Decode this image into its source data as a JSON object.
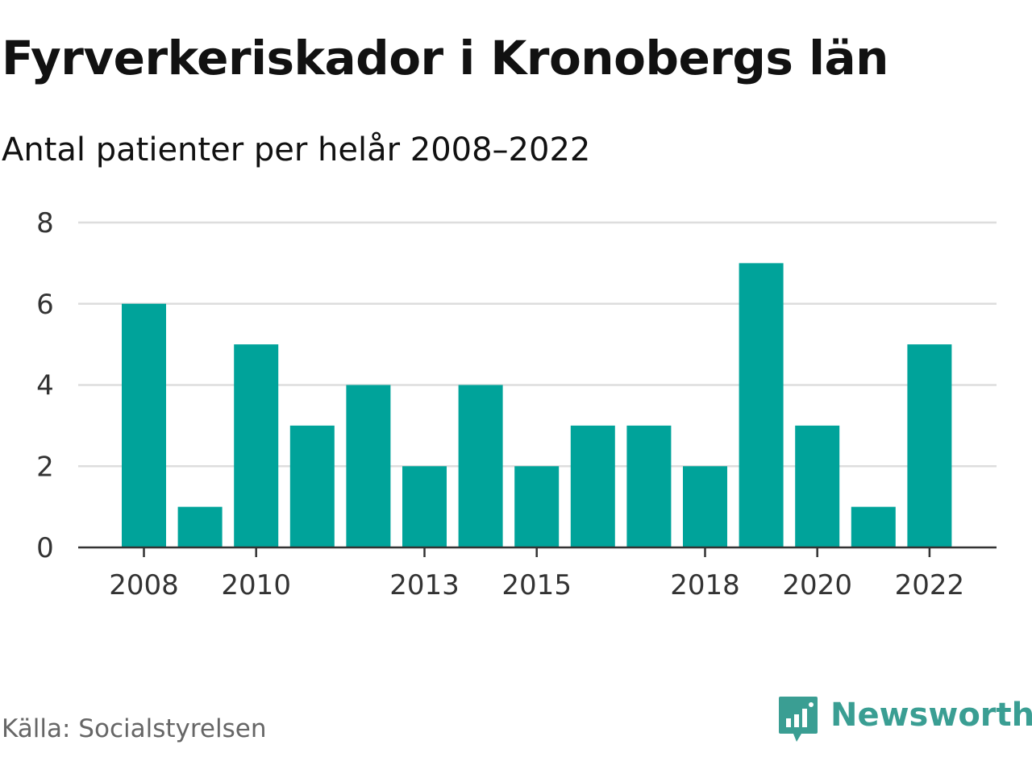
{
  "header": {
    "title": "Fyrverkeriskador i Kronobergs län",
    "subtitle": "Antal patienter per helår 2008–2022"
  },
  "footer": {
    "source": "Källa: Socialstyrelsen",
    "brand": "Newsworthy"
  },
  "colors": {
    "bar": "#00A39A",
    "grid": "#dddddd",
    "axis": "#333333",
    "brand": "#3a9e93"
  },
  "chart_data": {
    "type": "bar",
    "title": "Fyrverkeriskador i Kronobergs län",
    "subtitle": "Antal patienter per helår 2008–2022",
    "categories": [
      "2008",
      "2009",
      "2010",
      "2011",
      "2012",
      "2013",
      "2014",
      "2015",
      "2016",
      "2017",
      "2018",
      "2019",
      "2020",
      "2021",
      "2022"
    ],
    "values": [
      6,
      1,
      5,
      3,
      4,
      2,
      4,
      2,
      3,
      3,
      2,
      7,
      3,
      1,
      5
    ],
    "x_tick_labels": [
      "2008",
      "2010",
      "2013",
      "2015",
      "2018",
      "2020",
      "2022"
    ],
    "y_ticks": [
      0,
      2,
      4,
      6,
      8
    ],
    "ylim": [
      0,
      8
    ],
    "grid": true,
    "legend": "none"
  }
}
